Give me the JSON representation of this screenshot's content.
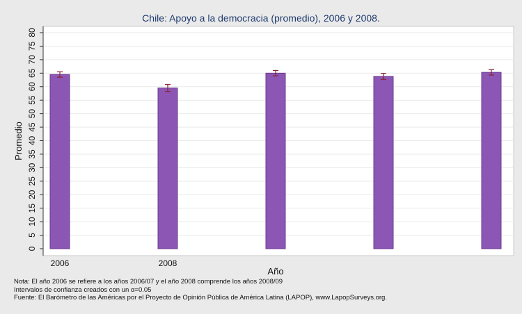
{
  "chart_data": {
    "type": "bar",
    "title": "Chile: Apoyo a la democracia (promedio), 2006 y 2008.",
    "xlabel": "Año",
    "ylabel": "Promedio",
    "ylim": [
      0,
      80
    ],
    "ytick_step": 5,
    "grid": true,
    "categories": [
      "2006",
      "2008",
      "",
      "",
      ""
    ],
    "values": [
      64.5,
      59.5,
      65.0,
      63.8,
      65.3
    ],
    "ci_lower": [
      63.5,
      58.2,
      64.0,
      62.7,
      64.3
    ],
    "ci_upper": [
      65.5,
      60.8,
      66.0,
      64.9,
      66.3
    ],
    "bar_color": "#8c57b4",
    "bar_edge_color": "#6c3a92",
    "errorbar_color": "#8b2030"
  },
  "notes": {
    "line1": "Nota: El año 2006 se refiere a los años 2006/07 y el año 2008 comprende los años 2008/09",
    "line2": "Intervalos de confianza creados con un α=0.05",
    "line3": "Fuente: El Barómetro de las Américas por el Proyecto de Opinión Pública de América Latina (LAPOP), www.LapopSurveys.org."
  }
}
